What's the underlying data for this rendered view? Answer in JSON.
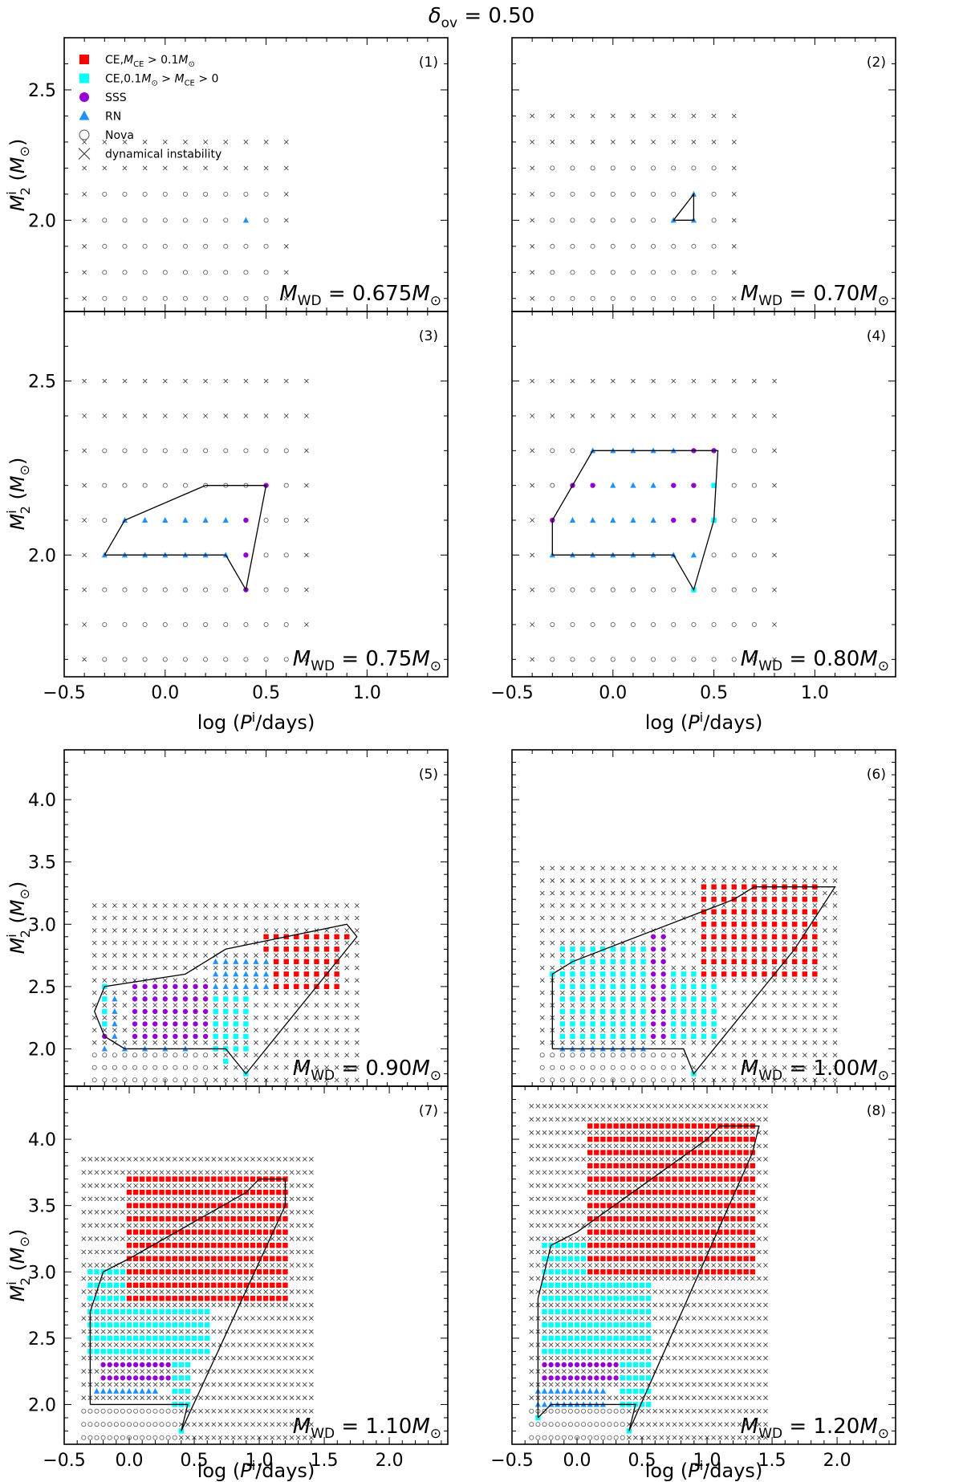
{
  "figure": {
    "title_html": "δ_ov = 0.50",
    "title_main": "δ",
    "title_sub": "ov",
    "title_rest": " = 0.50"
  },
  "legend": {
    "entries": [
      {
        "marker": "square",
        "color": "#ff0000",
        "main": "CE,",
        "parts": [
          [
            "M",
            "n"
          ],
          [
            "CE",
            "sub"
          ],
          [
            " > 0.1",
            "n"
          ],
          [
            "M",
            "n"
          ],
          [
            "⊙",
            "sub"
          ]
        ]
      },
      {
        "marker": "square",
        "color": "#00ffff",
        "main": "CE,",
        "parts": [
          [
            "0.1",
            "n"
          ],
          [
            "M",
            "n"
          ],
          [
            "⊙",
            "sub"
          ],
          [
            " > ",
            "n"
          ],
          [
            "M",
            "n"
          ],
          [
            "CE",
            "sub"
          ],
          [
            " > 0",
            "n"
          ]
        ]
      },
      {
        "marker": "circle",
        "color": "#9400d3",
        "label": "SSS"
      },
      {
        "marker": "triangle",
        "color": "#1e90ff",
        "label": "RN"
      },
      {
        "marker": "open-circle",
        "color": "#555555",
        "label": "Nova"
      },
      {
        "marker": "cross",
        "color": "#333333",
        "label": "dynamical instability"
      }
    ]
  },
  "colors": {
    "ce_high": "#ff0000",
    "ce_low": "#00ffff",
    "sss": "#9400d3",
    "rn": "#1e90ff",
    "nova": "#555555",
    "dyn": "#333333"
  },
  "axes_labels": {
    "xlabel": "log (P^i/days)",
    "ylabel": "M_2^i (M_⊙)"
  },
  "chart_data": [
    {
      "type": "scatter",
      "panel": "(1)",
      "mwd_label": "0.675",
      "xlim": [
        -0.5,
        1.4
      ],
      "ylim": [
        1.65,
        2.7
      ],
      "yticks": [
        2.0,
        2.5
      ],
      "xticks": [],
      "grid": {
        "x_start": -0.4,
        "x_step": 0.1,
        "x_end": 0.6,
        "y_start": 1.7,
        "y_step": 0.1,
        "y_end": 2.3
      },
      "nova_bands": [
        {
          "y_min": 1.7,
          "y_max": 2.1,
          "x_min": -0.3,
          "x_max": 0.5
        }
      ],
      "points": [
        {
          "x": 0.4,
          "y": 2.0,
          "t": "rn"
        }
      ],
      "boundary": []
    },
    {
      "type": "scatter",
      "panel": "(2)",
      "mwd_label": "0.70",
      "xlim": [
        -0.5,
        1.4
      ],
      "ylim": [
        1.65,
        2.7
      ],
      "yticks": [],
      "xticks": [],
      "grid": {
        "x_start": -0.4,
        "x_step": 0.1,
        "x_end": 0.6,
        "y_start": 1.7,
        "y_step": 0.1,
        "y_end": 2.4
      },
      "nova_bands": [
        {
          "y_min": 1.7,
          "y_max": 2.2,
          "x_min": -0.3,
          "x_max": 0.5
        }
      ],
      "points": [
        {
          "x": 0.3,
          "y": 2.0,
          "t": "rn"
        },
        {
          "x": 0.4,
          "y": 2.0,
          "t": "rn"
        },
        {
          "x": 0.4,
          "y": 2.1,
          "t": "rn"
        }
      ],
      "boundary": [
        [
          0.3,
          2.0
        ],
        [
          0.4,
          2.1
        ],
        [
          0.4,
          2.0
        ],
        [
          0.3,
          2.0
        ]
      ]
    },
    {
      "type": "scatter",
      "panel": "(3)",
      "mwd_label": "0.75",
      "xlim": [
        -0.5,
        1.4
      ],
      "ylim": [
        1.65,
        2.7
      ],
      "yticks": [
        2.0,
        2.5
      ],
      "xticks": [
        -0.5,
        0.0,
        0.5,
        1.0
      ],
      "grid": {
        "x_start": -0.4,
        "x_step": 0.1,
        "x_end": 0.7,
        "y_start": 1.7,
        "y_step": 0.1,
        "y_end": 2.5
      },
      "nova_bands": [
        {
          "y_min": 1.7,
          "y_max": 2.3,
          "x_min": -0.3,
          "x_max": 0.6
        }
      ],
      "points": [
        {
          "x": -0.3,
          "y": 2.0,
          "t": "rn"
        },
        {
          "x": -0.2,
          "y": 2.0,
          "t": "rn"
        },
        {
          "x": -0.1,
          "y": 2.0,
          "t": "rn"
        },
        {
          "x": 0.0,
          "y": 2.0,
          "t": "rn"
        },
        {
          "x": 0.1,
          "y": 2.0,
          "t": "rn"
        },
        {
          "x": 0.2,
          "y": 2.0,
          "t": "rn"
        },
        {
          "x": 0.3,
          "y": 2.0,
          "t": "rn"
        },
        {
          "x": 0.4,
          "y": 2.0,
          "t": "sss"
        },
        {
          "x": -0.2,
          "y": 2.1,
          "t": "rn"
        },
        {
          "x": -0.1,
          "y": 2.1,
          "t": "rn"
        },
        {
          "x": 0.0,
          "y": 2.1,
          "t": "rn"
        },
        {
          "x": 0.1,
          "y": 2.1,
          "t": "rn"
        },
        {
          "x": 0.2,
          "y": 2.1,
          "t": "rn"
        },
        {
          "x": 0.3,
          "y": 2.1,
          "t": "rn"
        },
        {
          "x": 0.4,
          "y": 2.1,
          "t": "sss"
        },
        {
          "x": 0.5,
          "y": 2.2,
          "t": "sss"
        },
        {
          "x": 0.4,
          "y": 1.9,
          "t": "sss"
        }
      ],
      "boundary": [
        [
          -0.3,
          2.0
        ],
        [
          -0.2,
          2.1
        ],
        [
          0.2,
          2.2
        ],
        [
          0.5,
          2.2
        ],
        [
          0.4,
          1.9
        ],
        [
          0.3,
          2.0
        ],
        [
          -0.3,
          2.0
        ]
      ]
    },
    {
      "type": "scatter",
      "panel": "(4)",
      "mwd_label": "0.80",
      "xlim": [
        -0.5,
        1.4
      ],
      "ylim": [
        1.65,
        2.7
      ],
      "yticks": [],
      "xticks": [
        -0.5,
        0.0,
        0.5,
        1.0
      ],
      "grid": {
        "x_start": -0.4,
        "x_step": 0.1,
        "x_end": 0.8,
        "y_start": 1.7,
        "y_step": 0.1,
        "y_end": 2.5
      },
      "nova_bands": [
        {
          "y_min": 1.7,
          "y_max": 2.3,
          "x_min": -0.3,
          "x_max": 0.7
        }
      ],
      "points": [
        {
          "x": -0.3,
          "y": 2.0,
          "t": "rn"
        },
        {
          "x": -0.2,
          "y": 2.0,
          "t": "rn"
        },
        {
          "x": -0.1,
          "y": 2.0,
          "t": "rn"
        },
        {
          "x": 0.0,
          "y": 2.0,
          "t": "rn"
        },
        {
          "x": 0.1,
          "y": 2.0,
          "t": "rn"
        },
        {
          "x": 0.2,
          "y": 2.0,
          "t": "rn"
        },
        {
          "x": 0.3,
          "y": 2.0,
          "t": "rn"
        },
        {
          "x": 0.4,
          "y": 2.0,
          "t": "rn"
        },
        {
          "x": -0.3,
          "y": 2.1,
          "t": "sss"
        },
        {
          "x": -0.2,
          "y": 2.1,
          "t": "rn"
        },
        {
          "x": -0.1,
          "y": 2.1,
          "t": "rn"
        },
        {
          "x": 0.0,
          "y": 2.1,
          "t": "rn"
        },
        {
          "x": 0.1,
          "y": 2.1,
          "t": "rn"
        },
        {
          "x": 0.2,
          "y": 2.1,
          "t": "rn"
        },
        {
          "x": 0.3,
          "y": 2.1,
          "t": "sss"
        },
        {
          "x": 0.4,
          "y": 2.1,
          "t": "sss"
        },
        {
          "x": 0.5,
          "y": 2.1,
          "t": "ce_low"
        },
        {
          "x": -0.2,
          "y": 2.2,
          "t": "sss"
        },
        {
          "x": -0.1,
          "y": 2.2,
          "t": "sss"
        },
        {
          "x": 0.0,
          "y": 2.2,
          "t": "rn"
        },
        {
          "x": 0.1,
          "y": 2.2,
          "t": "rn"
        },
        {
          "x": 0.2,
          "y": 2.2,
          "t": "rn"
        },
        {
          "x": 0.3,
          "y": 2.2,
          "t": "sss"
        },
        {
          "x": 0.4,
          "y": 2.2,
          "t": "sss"
        },
        {
          "x": 0.5,
          "y": 2.2,
          "t": "ce_low"
        },
        {
          "x": -0.1,
          "y": 2.3,
          "t": "rn"
        },
        {
          "x": 0.0,
          "y": 2.3,
          "t": "rn"
        },
        {
          "x": 0.1,
          "y": 2.3,
          "t": "rn"
        },
        {
          "x": 0.2,
          "y": 2.3,
          "t": "rn"
        },
        {
          "x": 0.3,
          "y": 2.3,
          "t": "rn"
        },
        {
          "x": 0.4,
          "y": 2.3,
          "t": "sss"
        },
        {
          "x": 0.5,
          "y": 2.3,
          "t": "sss"
        },
        {
          "x": 0.4,
          "y": 1.9,
          "t": "ce_low"
        }
      ],
      "boundary": [
        [
          -0.3,
          2.0
        ],
        [
          -0.3,
          2.1
        ],
        [
          -0.2,
          2.2
        ],
        [
          -0.1,
          2.3
        ],
        [
          0.52,
          2.3
        ],
        [
          0.5,
          2.1
        ],
        [
          0.4,
          1.9
        ],
        [
          0.3,
          2.0
        ],
        [
          -0.3,
          2.0
        ]
      ]
    },
    {
      "type": "scatter",
      "panel": "(5)",
      "mwd_label": "0.90",
      "xlim": [
        -0.5,
        1.4
      ],
      "ylim": [
        1.7,
        4.4
      ],
      "yticks": [
        2.0,
        2.5,
        3.0,
        3.5,
        4.0
      ],
      "xticks": [],
      "grid": {
        "x_start": -0.35,
        "x_step": 0.05,
        "x_end": 0.95,
        "y_start": 1.75,
        "y_step": 0.1,
        "y_end": 3.2
      },
      "nova_bands": [
        {
          "y_min": 1.75,
          "y_max": 1.95,
          "x_min": -0.35,
          "x_max": 0.2
        }
      ],
      "regions": [
        {
          "t": "sss",
          "x_min": -0.15,
          "x_max": 0.2,
          "y_min": 2.1,
          "y_max": 2.5,
          "step": 0.1
        },
        {
          "t": "ce_low",
          "x_min": 0.25,
          "x_max": 0.4,
          "y_min": 2.0,
          "y_max": 2.5,
          "step": 0.1
        },
        {
          "t": "ce_high",
          "x_min": 0.5,
          "x_max": 0.85,
          "y_min": 2.5,
          "y_max": 2.9,
          "step": 0.1
        },
        {
          "t": "rn",
          "x_min": 0.25,
          "x_max": 0.5,
          "y_min": 2.5,
          "y_max": 2.7,
          "step": 0.1
        },
        {
          "t": "rn",
          "x_min": -0.25,
          "x_max": -0.25,
          "y_min": 2.1,
          "y_max": 2.4,
          "step": 0.1
        },
        {
          "t": "ce_low",
          "x_min": -0.3,
          "x_max": -0.3,
          "y_min": 2.2,
          "y_max": 2.5,
          "step": 0.1
        }
      ],
      "points": [
        {
          "x": -0.3,
          "y": 2.0,
          "t": "rn"
        },
        {
          "x": -0.2,
          "y": 2.0,
          "t": "rn"
        },
        {
          "x": -0.1,
          "y": 2.0,
          "t": "rn"
        },
        {
          "x": 0.0,
          "y": 2.0,
          "t": "rn"
        },
        {
          "x": 0.1,
          "y": 2.0,
          "t": "rn"
        },
        {
          "x": 0.4,
          "y": 1.8,
          "t": "ce_low"
        },
        {
          "x": 0.3,
          "y": 1.9,
          "t": "ce_low"
        },
        {
          "x": -0.3,
          "y": 2.1,
          "t": "sss"
        },
        {
          "x": 0.9,
          "y": 2.9,
          "t": "ce_high"
        }
      ],
      "boundary": [
        [
          -0.3,
          2.1
        ],
        [
          -0.35,
          2.3
        ],
        [
          -0.3,
          2.5
        ],
        [
          0.1,
          2.6
        ],
        [
          0.3,
          2.8
        ],
        [
          0.9,
          3.0
        ],
        [
          0.95,
          2.9
        ],
        [
          0.4,
          1.8
        ],
        [
          0.3,
          2.0
        ],
        [
          0.15,
          2.0
        ],
        [
          -0.2,
          2.0
        ],
        [
          -0.3,
          2.1
        ]
      ]
    },
    {
      "type": "scatter",
      "panel": "(6)",
      "mwd_label": "1.00",
      "xlim": [
        -0.5,
        1.4
      ],
      "ylim": [
        1.7,
        4.4
      ],
      "yticks": [],
      "xticks": [],
      "grid": {
        "x_start": -0.35,
        "x_step": 0.05,
        "x_end": 1.1,
        "y_start": 1.75,
        "y_step": 0.1,
        "y_end": 3.5
      },
      "nova_bands": [
        {
          "y_min": 1.75,
          "y_max": 1.95,
          "x_min": -0.35,
          "x_max": 0.3
        }
      ],
      "regions": [
        {
          "t": "ce_low",
          "x_min": -0.25,
          "x_max": 0.25,
          "y_min": 2.3,
          "y_max": 2.8,
          "step": 0.1
        },
        {
          "t": "ce_low",
          "x_min": -0.25,
          "x_max": 0.5,
          "y_min": 2.1,
          "y_max": 2.6,
          "step": 0.1
        },
        {
          "t": "sss",
          "x_min": 0.2,
          "x_max": 0.25,
          "y_min": 2.1,
          "y_max": 2.9,
          "step": 0.1
        },
        {
          "t": "ce_high",
          "x_min": 0.45,
          "x_max": 1.0,
          "y_min": 2.6,
          "y_max": 3.3,
          "step": 0.1
        },
        {
          "t": "rn",
          "x_min": -0.25,
          "x_max": 0.15,
          "y_min": 2.0,
          "y_max": 2.0,
          "step": 0.1
        }
      ],
      "points": [
        {
          "x": 0.4,
          "y": 1.8,
          "t": "ce_low"
        },
        {
          "x": -0.3,
          "y": 2.6,
          "t": "ce_low"
        }
      ],
      "boundary": [
        [
          -0.3,
          2.0
        ],
        [
          -0.3,
          2.6
        ],
        [
          -0.2,
          2.7
        ],
        [
          0.6,
          3.2
        ],
        [
          0.7,
          3.3
        ],
        [
          1.1,
          3.3
        ],
        [
          0.9,
          2.8
        ],
        [
          0.4,
          1.8
        ],
        [
          0.35,
          2.0
        ],
        [
          -0.3,
          2.0
        ]
      ]
    },
    {
      "type": "scatter",
      "panel": "(7)",
      "mwd_label": "1.10",
      "xlim": [
        -0.5,
        2.45
      ],
      "ylim": [
        1.7,
        4.4
      ],
      "yticks": [
        2.0,
        2.5,
        3.0,
        3.5,
        4.0
      ],
      "xticks": [
        -0.5,
        0.0,
        0.5,
        1.0,
        1.5,
        2.0
      ],
      "grid": {
        "x_start": -0.35,
        "x_step": 0.05,
        "x_end": 1.4,
        "y_start": 1.75,
        "y_step": 0.1,
        "y_end": 3.9
      },
      "nova_bands": [
        {
          "y_min": 1.75,
          "y_max": 1.95,
          "x_min": -0.35,
          "x_max": 0.35
        }
      ],
      "regions": [
        {
          "t": "ce_low",
          "x_min": -0.3,
          "x_max": 0.6,
          "y_min": 2.4,
          "y_max": 3.0,
          "step": 0.1
        },
        {
          "t": "ce_high",
          "x_min": 0.0,
          "x_max": 1.2,
          "y_min": 2.8,
          "y_max": 3.7,
          "step": 0.1
        },
        {
          "t": "sss",
          "x_min": -0.2,
          "x_max": 0.3,
          "y_min": 2.2,
          "y_max": 2.3,
          "step": 0.1
        },
        {
          "t": "ce_low",
          "x_min": 0.35,
          "x_max": 0.45,
          "y_min": 2.0,
          "y_max": 2.3,
          "step": 0.1
        },
        {
          "t": "rn",
          "x_min": -0.25,
          "x_max": 0.2,
          "y_min": 2.1,
          "y_max": 2.1,
          "step": 0.1
        }
      ],
      "points": [
        {
          "x": 0.4,
          "y": 1.8,
          "t": "ce_low"
        }
      ],
      "boundary": [
        [
          -0.3,
          2.0
        ],
        [
          -0.3,
          2.7
        ],
        [
          -0.2,
          3.0
        ],
        [
          0.0,
          3.1
        ],
        [
          0.9,
          3.6
        ],
        [
          1.0,
          3.7
        ],
        [
          1.2,
          3.7
        ],
        [
          1.2,
          3.5
        ],
        [
          0.4,
          1.8
        ],
        [
          0.45,
          2.0
        ],
        [
          -0.3,
          2.0
        ]
      ]
    },
    {
      "type": "scatter",
      "panel": "(8)",
      "mwd_label": "1.20",
      "xlim": [
        -0.5,
        2.45
      ],
      "ylim": [
        1.7,
        4.4
      ],
      "yticks": [],
      "xticks": [
        -0.5,
        0.0,
        0.5,
        1.0,
        1.5,
        2.0
      ],
      "grid": {
        "x_start": -0.35,
        "x_step": 0.05,
        "x_end": 1.45,
        "y_start": 1.75,
        "y_step": 0.1,
        "y_end": 4.3
      },
      "nova_bands": [
        {
          "y_min": 1.75,
          "y_max": 1.95,
          "x_min": -0.35,
          "x_max": 0.35
        }
      ],
      "regions": [
        {
          "t": "ce_low",
          "x_min": -0.25,
          "x_max": 0.55,
          "y_min": 2.4,
          "y_max": 3.2,
          "step": 0.1
        },
        {
          "t": "ce_high",
          "x_min": 0.1,
          "x_max": 1.35,
          "y_min": 3.0,
          "y_max": 4.1,
          "step": 0.1
        },
        {
          "t": "sss",
          "x_min": -0.25,
          "x_max": 0.3,
          "y_min": 2.2,
          "y_max": 2.3,
          "step": 0.1
        },
        {
          "t": "ce_low",
          "x_min": 0.35,
          "x_max": 0.55,
          "y_min": 2.0,
          "y_max": 2.3,
          "step": 0.1
        },
        {
          "t": "rn",
          "x_min": -0.3,
          "x_max": 0.2,
          "y_min": 2.0,
          "y_max": 2.1,
          "step": 0.1
        }
      ],
      "points": [
        {
          "x": 0.4,
          "y": 1.8,
          "t": "ce_low"
        },
        {
          "x": -0.3,
          "y": 1.9,
          "t": "ce_low"
        }
      ],
      "boundary": [
        [
          -0.3,
          1.9
        ],
        [
          -0.3,
          2.8
        ],
        [
          -0.2,
          3.2
        ],
        [
          0.0,
          3.3
        ],
        [
          1.0,
          4.0
        ],
        [
          1.1,
          4.1
        ],
        [
          1.4,
          4.1
        ],
        [
          1.35,
          3.9
        ],
        [
          0.4,
          1.8
        ],
        [
          0.45,
          2.0
        ],
        [
          -0.2,
          2.0
        ],
        [
          -0.3,
          1.9
        ]
      ]
    }
  ]
}
